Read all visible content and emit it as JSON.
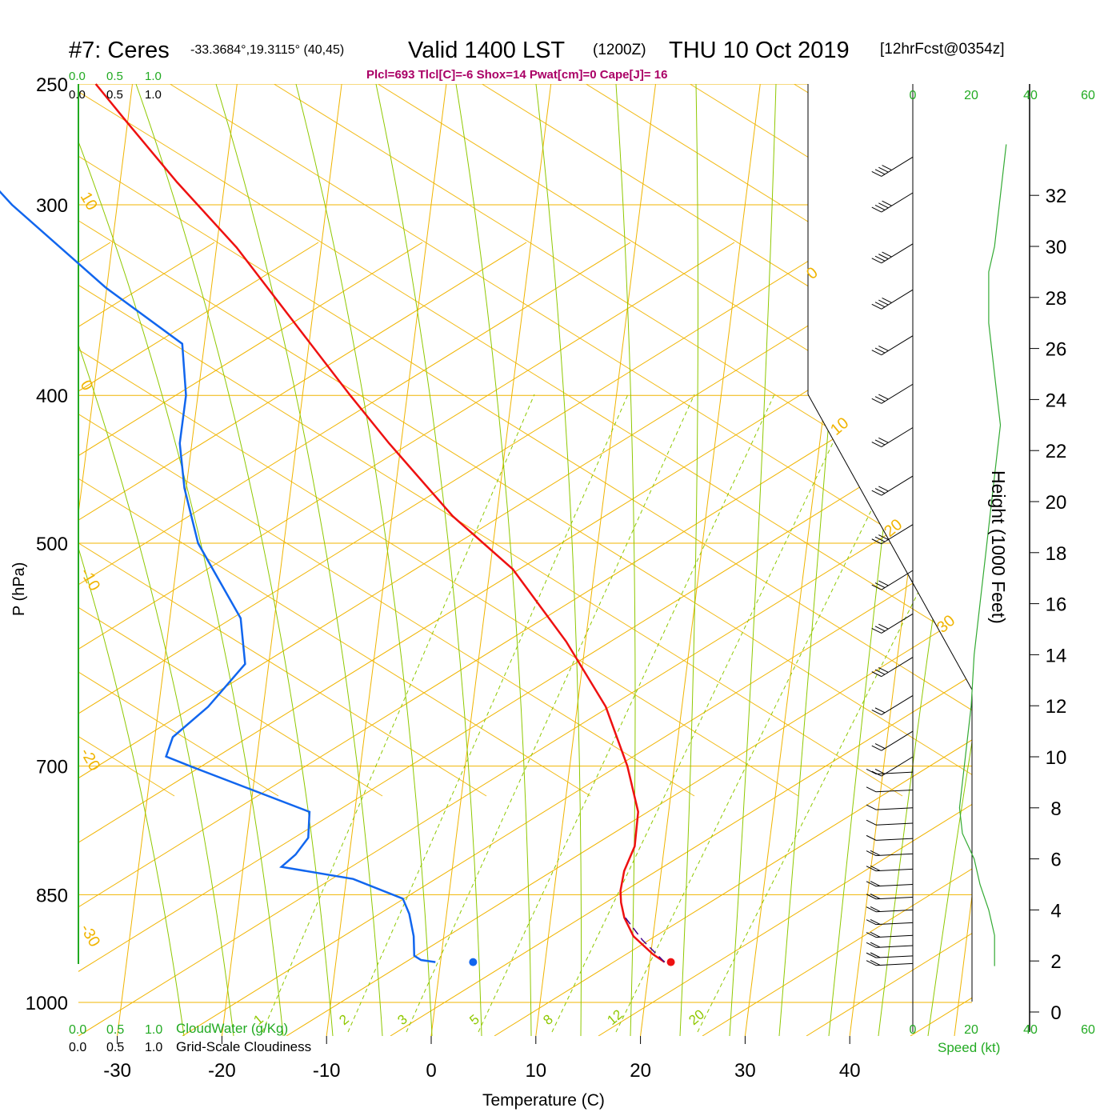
{
  "header": {
    "station": "#7: Ceres",
    "coords": "-33.3684°,19.3115° (40,45)",
    "valid_prefix": "Valid 1400 LST",
    "valid_z": "(1200Z)",
    "valid_date": "THU 10 Oct 2019",
    "forecast": "[12hrFcst@0354z]",
    "indices": "Plcl=693 Tlcl[C]=-6 Shox=14 Pwat[cm]=0 Cape[J]= 16"
  },
  "labels": {
    "y_left": "P (hPa)",
    "x_bottom": "Temperature (C)",
    "y_right": "Height (1000 Feet)",
    "cloudwater": "CloudWater (g/Kg)",
    "cloudiness": "Grid-Scale Cloudiness",
    "speed": "Speed (kt)"
  },
  "colors": {
    "isotherm": "#f0b400",
    "adiabat": "#8fc800",
    "mixratio": "#8fc800",
    "temperature": "#ee1111",
    "dewpoint": "#1166ee",
    "parcel": "#440088",
    "green_text": "#22aa22",
    "index_text": "#aa0066",
    "wind_profile": "#33aa33"
  },
  "chart_data": {
    "type": "skew-t",
    "pressure_ticks": [
      250,
      300,
      400,
      500,
      700,
      850,
      1000
    ],
    "temperature_ticks": [
      -30,
      -20,
      -10,
      0,
      10,
      20,
      30,
      40
    ],
    "height_ticks_kft": [
      0,
      2,
      4,
      6,
      8,
      10,
      12,
      14,
      16,
      18,
      20,
      22,
      24,
      26,
      28,
      30,
      32
    ],
    "isotherm_labels": [
      "10",
      "0",
      "-10",
      "-20",
      "-30",
      "0",
      "10",
      "20",
      "30"
    ],
    "mixing_ratio_labels": [
      "1",
      "2",
      "3",
      "5",
      "8",
      "12",
      "20"
    ],
    "cloud_scale_top": [
      "0.0",
      "0.5",
      "1.0"
    ],
    "cloud_scale_top2": [
      "0.0",
      "0.5",
      "1.0"
    ],
    "cloud_scale_bottom": [
      "0.0",
      "0.5",
      "1.0"
    ],
    "cloud_scale_bottom2": [
      "0.0",
      "0.5",
      "1.0"
    ],
    "wind_speed_ticks": [
      "0",
      "20",
      "40",
      "60"
    ],
    "temperature_profile": [
      {
        "p": 941,
        "t": 21.8
      },
      {
        "p": 930,
        "t": 20.6
      },
      {
        "p": 905,
        "t": 18.5
      },
      {
        "p": 880,
        "t": 17.4
      },
      {
        "p": 860,
        "t": 16.9
      },
      {
        "p": 845,
        "t": 16.7
      },
      {
        "p": 820,
        "t": 16.8
      },
      {
        "p": 790,
        "t": 17.5
      },
      {
        "p": 750,
        "t": 17.4
      },
      {
        "p": 700,
        "t": 15.8
      },
      {
        "p": 640,
        "t": 13.0
      },
      {
        "p": 580,
        "t": 8.4
      },
      {
        "p": 520,
        "t": 2.4
      },
      {
        "p": 480,
        "t": -4.0
      },
      {
        "p": 430,
        "t": -11.0
      },
      {
        "p": 400,
        "t": -15.3
      },
      {
        "p": 360,
        "t": -21.3
      },
      {
        "p": 320,
        "t": -28.0
      },
      {
        "p": 290,
        "t": -34.5
      },
      {
        "p": 265,
        "t": -40.0
      },
      {
        "p": 250,
        "t": -43.5
      }
    ],
    "dewpoint_profile": [
      {
        "p": 941,
        "t": -0.1
      },
      {
        "p": 938,
        "t": -1.5
      },
      {
        "p": 932,
        "t": -2.2
      },
      {
        "p": 905,
        "t": -2.5
      },
      {
        "p": 875,
        "t": -3.2
      },
      {
        "p": 855,
        "t": -4.0
      },
      {
        "p": 830,
        "t": -9.0
      },
      {
        "p": 815,
        "t": -16.0
      },
      {
        "p": 800,
        "t": -14.8
      },
      {
        "p": 780,
        "t": -13.8
      },
      {
        "p": 750,
        "t": -14.0
      },
      {
        "p": 700,
        "t": -26.0
      },
      {
        "p": 690,
        "t": -28.4
      },
      {
        "p": 670,
        "t": -28.0
      },
      {
        "p": 640,
        "t": -25.0
      },
      {
        "p": 600,
        "t": -22.0
      },
      {
        "p": 560,
        "t": -23.0
      },
      {
        "p": 500,
        "t": -28.0
      },
      {
        "p": 460,
        "t": -30.0
      },
      {
        "p": 430,
        "t": -31.0
      },
      {
        "p": 400,
        "t": -31.0
      },
      {
        "p": 370,
        "t": -32.0
      },
      {
        "p": 340,
        "t": -40.0
      },
      {
        "p": 300,
        "t": -50.0
      },
      {
        "p": 270,
        "t": -57.0
      },
      {
        "p": 250,
        "t": -59.0
      }
    ],
    "parcel_path": [
      {
        "p": 941,
        "t": 21.8
      },
      {
        "p": 910,
        "t": 19.4
      },
      {
        "p": 880,
        "t": 17.5
      }
    ],
    "surface_temperature": {
      "p": 941,
      "t": 22.4
    },
    "surface_dewpoint": {
      "p": 941,
      "t": 3.5
    },
    "wind_profile_kt": [
      {
        "h": 1.8,
        "s": 11
      },
      {
        "h": 3,
        "s": 11
      },
      {
        "h": 4,
        "s": 9
      },
      {
        "h": 5,
        "s": 6
      },
      {
        "h": 6,
        "s": 4
      },
      {
        "h": 7,
        "s": 0
      },
      {
        "h": 8,
        "s": -1
      },
      {
        "h": 10,
        "s": 1
      },
      {
        "h": 12,
        "s": 3
      },
      {
        "h": 14,
        "s": 4
      },
      {
        "h": 16,
        "s": 6
      },
      {
        "h": 18,
        "s": 8
      },
      {
        "h": 20,
        "s": 10
      },
      {
        "h": 22,
        "s": 12
      },
      {
        "h": 23,
        "s": 13
      },
      {
        "h": 24,
        "s": 12
      },
      {
        "h": 27,
        "s": 9
      },
      {
        "h": 29,
        "s": 9
      },
      {
        "h": 30,
        "s": 11
      },
      {
        "h": 32,
        "s": 13
      },
      {
        "h": 34,
        "s": 15
      }
    ],
    "wind_barbs": [
      {
        "h": 33.5,
        "s": 40
      },
      {
        "h": 32.1,
        "s": 40
      },
      {
        "h": 30.1,
        "s": 40
      },
      {
        "h": 28.3,
        "s": 35
      },
      {
        "h": 26.5,
        "s": 30
      },
      {
        "h": 24.6,
        "s": 25
      },
      {
        "h": 22.9,
        "s": 25
      },
      {
        "h": 21.0,
        "s": 30
      },
      {
        "h": 19.1,
        "s": 25
      },
      {
        "h": 17.3,
        "s": 25
      },
      {
        "h": 15.6,
        "s": 25
      },
      {
        "h": 13.9,
        "s": 25
      },
      {
        "h": 12.4,
        "s": 20
      },
      {
        "h": 11.0,
        "s": 20
      },
      {
        "h": 10.0,
        "s": 15
      },
      {
        "h": 9.4,
        "s": 10
      },
      {
        "h": 8.7,
        "s": 10
      },
      {
        "h": 8.0,
        "s": 10
      },
      {
        "h": 7.4,
        "s": 10
      },
      {
        "h": 6.8,
        "s": 10
      },
      {
        "h": 6.2,
        "s": 15
      },
      {
        "h": 5.6,
        "s": 15
      },
      {
        "h": 5.0,
        "s": 15
      },
      {
        "h": 4.5,
        "s": 15
      },
      {
        "h": 4.0,
        "s": 15
      },
      {
        "h": 3.5,
        "s": 15
      },
      {
        "h": 3.0,
        "s": 15
      },
      {
        "h": 2.6,
        "s": 15
      },
      {
        "h": 2.2,
        "s": 15
      },
      {
        "h": 1.9,
        "s": 15
      }
    ]
  }
}
